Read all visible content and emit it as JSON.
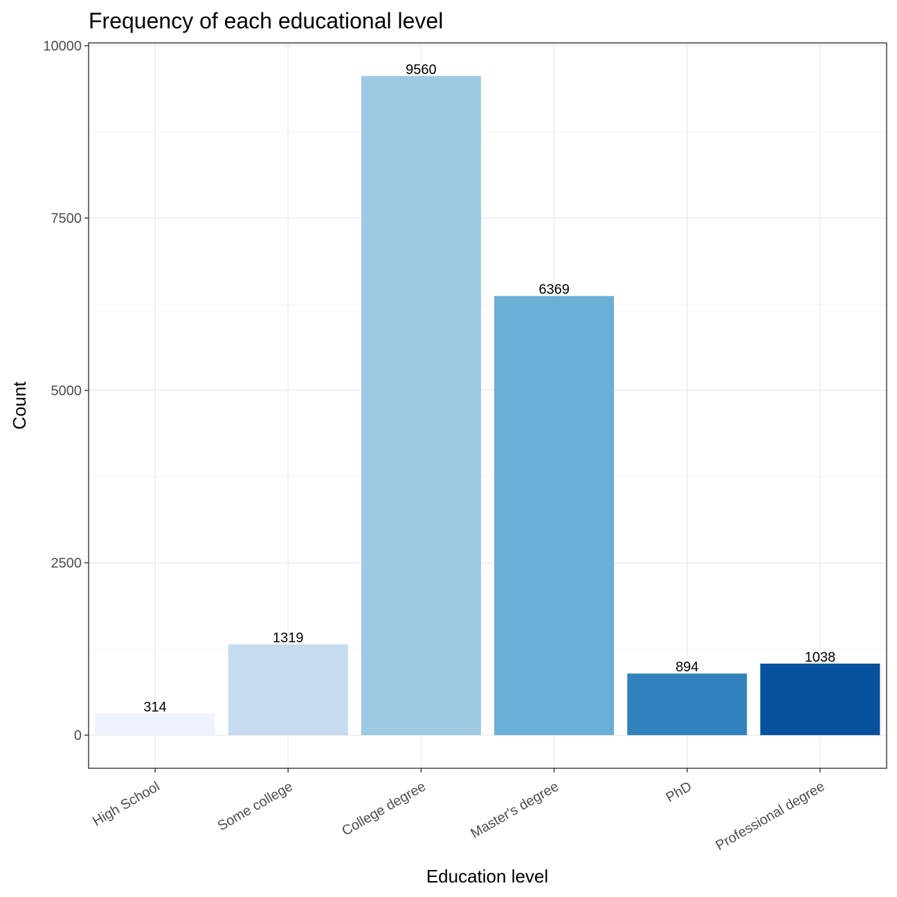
{
  "chart_data": {
    "type": "bar",
    "title": "Frequency of each educational level",
    "xlabel": "Education level",
    "ylabel": "Count",
    "categories": [
      "High School",
      "Some college",
      "College degree",
      "Master's degree",
      "PhD",
      "Professional degree"
    ],
    "values": [
      314,
      1319,
      9560,
      6369,
      894,
      1038
    ],
    "data_labels": [
      "314",
      "1319",
      "9560",
      "6369",
      "894",
      "1038"
    ],
    "colors": [
      "#eff3ff",
      "#c6dbef",
      "#9ecae1",
      "#6baed6",
      "#3182bd",
      "#08519c"
    ],
    "ylim": [
      -480,
      10040
    ],
    "yticks": [
      0,
      2500,
      5000,
      7500,
      10000
    ],
    "ytick_labels": [
      "0",
      "2500",
      "5000",
      "7500",
      "10000"
    ],
    "grid": true,
    "legend": "none"
  }
}
